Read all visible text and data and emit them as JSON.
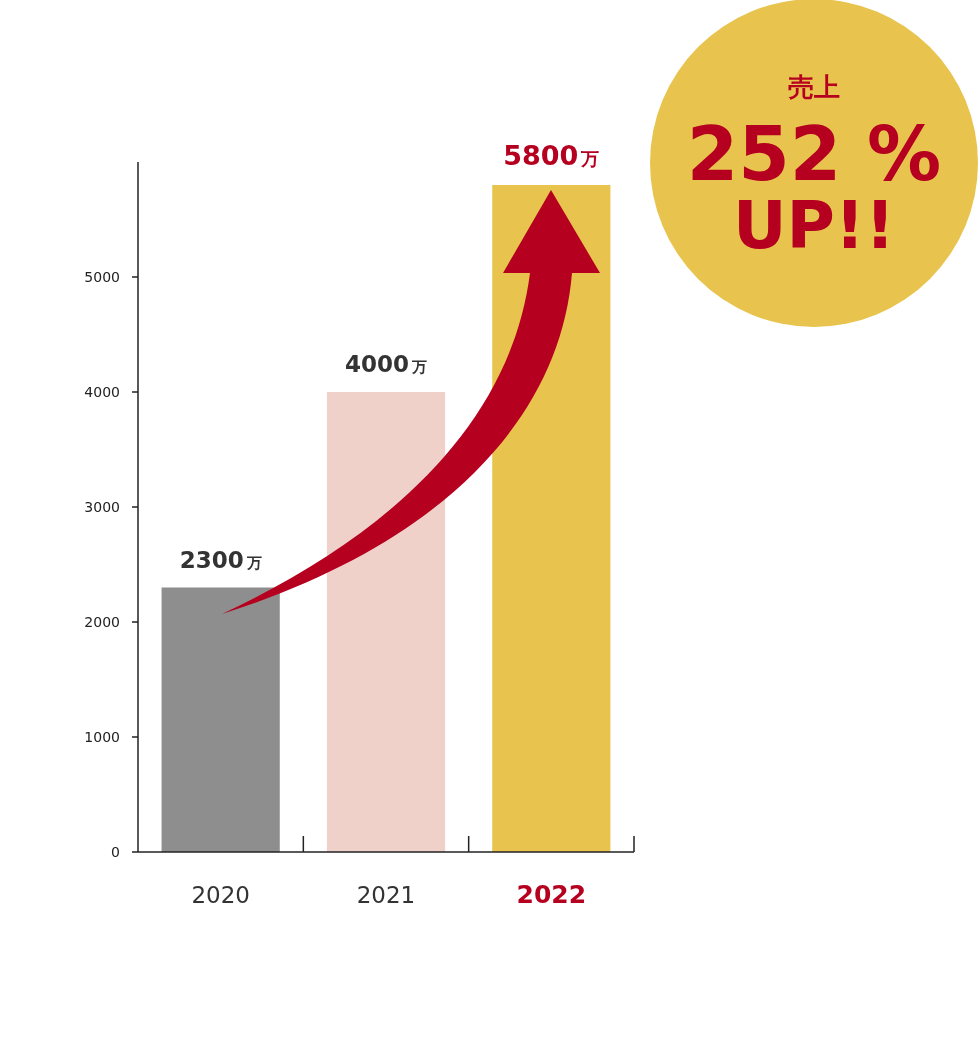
{
  "chart_data": {
    "type": "bar",
    "categories": [
      "2020",
      "2021",
      "2022"
    ],
    "values": [
      2300,
      4000,
      5800
    ],
    "colors": [
      "#8e8e8e",
      "#efd1ca",
      "#e8c44f"
    ],
    "value_labels": [
      "2300万",
      "4000万",
      "5800万"
    ],
    "ylim": [
      0,
      6000
    ],
    "yticks": [
      0,
      1000,
      2000,
      3000,
      4000,
      5000
    ],
    "grid": false,
    "annotations": [
      "売上\n252 %\nUP!!"
    ]
  }
}
